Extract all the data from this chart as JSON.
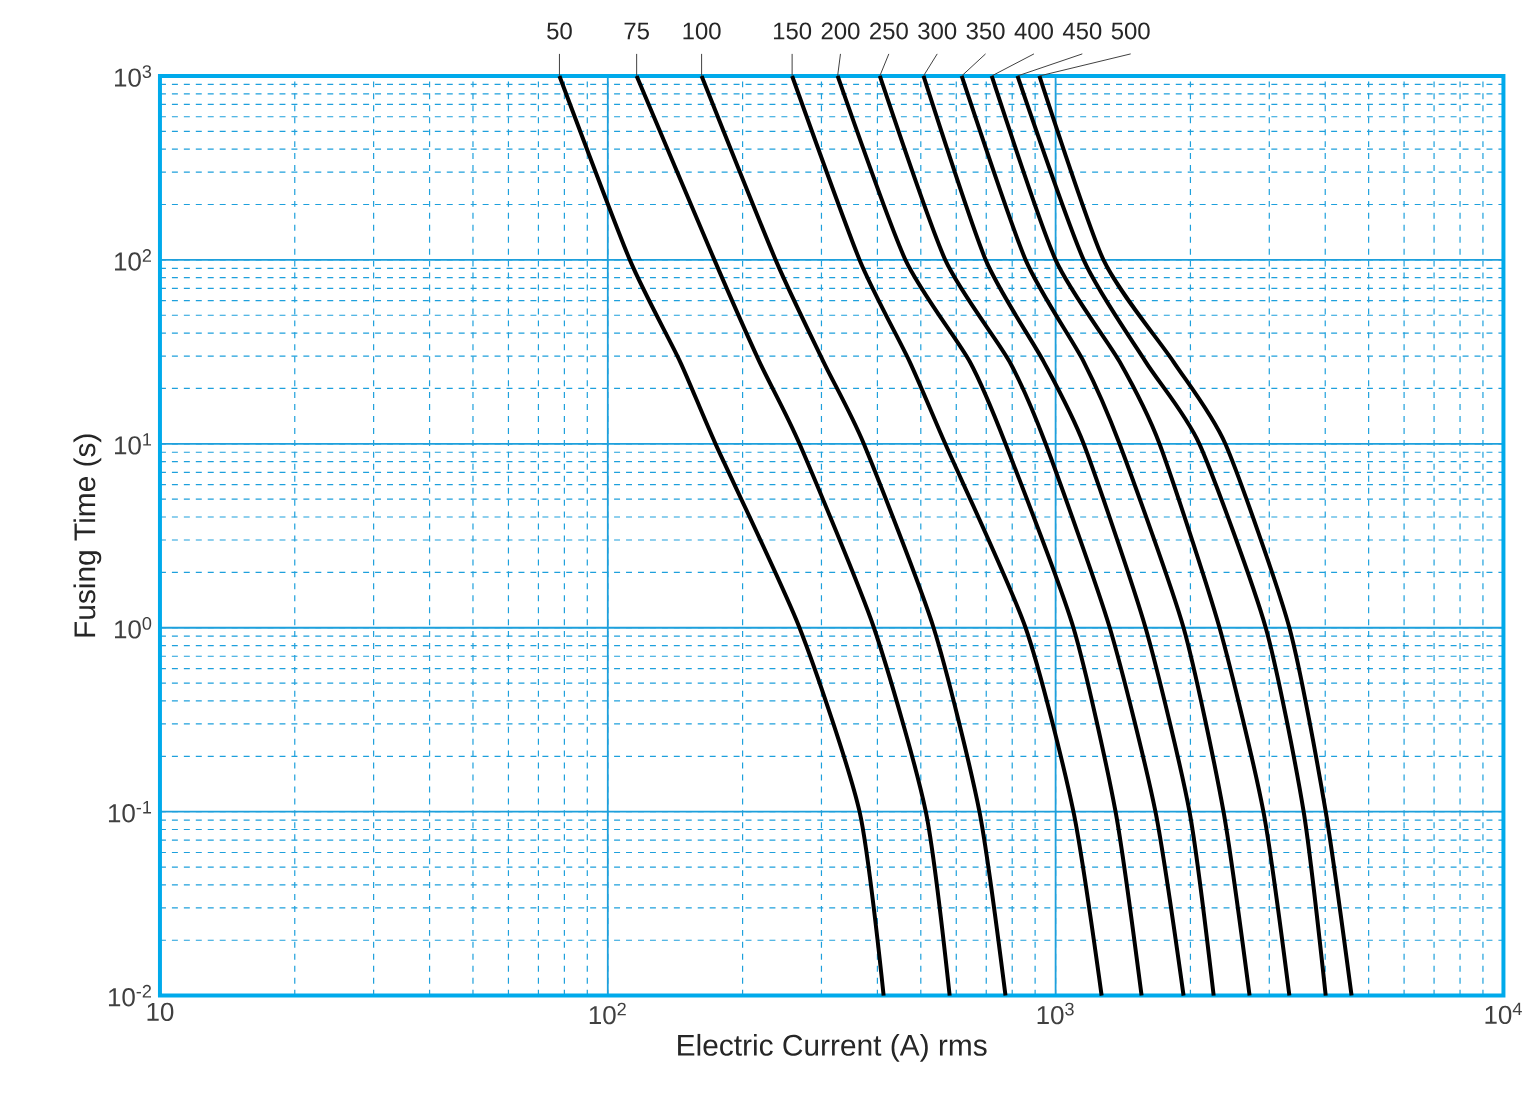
{
  "chart_data": {
    "type": "line",
    "xlabel": "Electric Current (A) rms",
    "ylabel": "Fusing Time (s)",
    "log": "xy",
    "grid": true,
    "marker": "none",
    "line_style": "solid",
    "xlim": [
      10,
      10000
    ],
    "ylim": [
      0.01,
      1000
    ],
    "xticks": [
      10,
      {
        "value": 100,
        "label": "10$^{2}$"
      },
      {
        "value": 1000,
        "label": "10$^{3}$"
      },
      {
        "value": 10000,
        "label": "10$^{4}$"
      }
    ],
    "yticks": [
      {
        "value": 0.01,
        "label": "10$^{-2}$"
      },
      {
        "value": 0.1,
        "label": "10$^{-1}$"
      },
      {
        "value": 1,
        "label": "10$^{0}$"
      },
      {
        "value": 10,
        "label": "10$^{1}$"
      },
      {
        "value": 100,
        "label": "10$^{2}$"
      },
      {
        "value": 1000,
        "label": "10$^{3}$"
      }
    ],
    "series": [
      {
        "name": "50",
        "color": "#000000",
        "x": [
          78,
          112,
          145,
          174,
          268,
          365,
          413
        ],
        "values": [
          1000,
          100,
          28,
          10,
          1,
          0.1,
          0.01
        ]
      },
      {
        "name": "75",
        "color": "#000000",
        "x": [
          116,
          173,
          218,
          268,
          393,
          513,
          580
        ],
        "values": [
          1000,
          100,
          28,
          10,
          1,
          0.1,
          0.01
        ]
      },
      {
        "name": "100",
        "color": "#000000",
        "x": [
          162,
          237,
          303,
          373,
          534,
          676,
          773
        ],
        "values": [
          1000,
          100,
          28,
          10,
          1,
          0.1,
          0.01
        ]
      },
      {
        "name": "150",
        "color": "#000000",
        "x": [
          258,
          365,
          472,
          567,
          857,
          1096,
          1267
        ],
        "values": [
          1000,
          100,
          28,
          10,
          1,
          0.1,
          0.01
        ]
      },
      {
        "name": "200",
        "color": "#000000",
        "x": [
          326,
          462,
          643,
          773,
          1096,
          1361,
          1556
        ],
        "values": [
          1000,
          100,
          28,
          10,
          1,
          0.1,
          0.01
        ]
      },
      {
        "name": "250",
        "color": "#000000",
        "x": [
          405,
          567,
          789,
          950,
          1321,
          1671,
          1931
        ],
        "values": [
          1000,
          100,
          28,
          10,
          1,
          0.1,
          0.01
        ]
      },
      {
        "name": "300",
        "color": "#000000",
        "x": [
          507,
          698,
          940,
          1155,
          1588,
          1991,
          2254
        ],
        "values": [
          1000,
          100,
          28,
          10,
          1,
          0.1,
          0.01
        ]
      },
      {
        "name": "350",
        "color": "#000000",
        "x": [
          617,
          857,
          1155,
          1389,
          1931,
          2371,
          2711
        ],
        "values": [
          1000,
          100,
          28,
          10,
          1,
          0.1,
          0.01
        ]
      },
      {
        "name": "400",
        "color": "#000000",
        "x": [
          720,
          1000,
          1389,
          1706,
          2323,
          2911,
          3327
        ],
        "values": [
          1000,
          100,
          28,
          10,
          1,
          0.1,
          0.01
        ]
      },
      {
        "name": "450",
        "color": "#000000",
        "x": [
          822,
          1155,
          1588,
          2094,
          2946,
          3580,
          4010
        ],
        "values": [
          1000,
          100,
          28,
          10,
          1,
          0.1,
          0.01
        ]
      },
      {
        "name": "500",
        "color": "#000000",
        "x": [
          920,
          1279,
          1832,
          2393,
          3327,
          4010,
          4580
        ],
        "values": [
          1000,
          100,
          28,
          10,
          1,
          0.1,
          0.01
        ]
      }
    ]
  }
}
